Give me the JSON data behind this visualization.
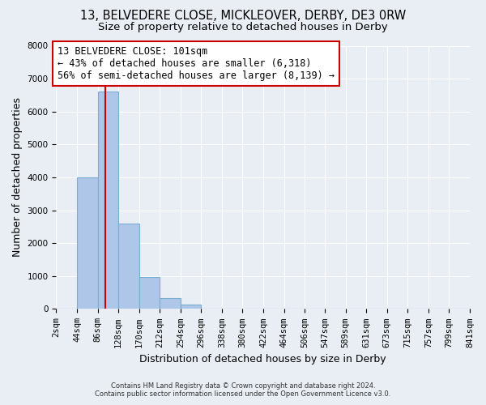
{
  "title": "13, BELVEDERE CLOSE, MICKLEOVER, DERBY, DE3 0RW",
  "subtitle": "Size of property relative to detached houses in Derby",
  "xlabel": "Distribution of detached houses by size in Derby",
  "ylabel": "Number of detached properties",
  "bin_edges": [
    2,
    44,
    86,
    128,
    170,
    212,
    254,
    296,
    338,
    380,
    422,
    464,
    506,
    547,
    589,
    631,
    673,
    715,
    757,
    799,
    841
  ],
  "bin_labels": [
    "2sqm",
    "44sqm",
    "86sqm",
    "128sqm",
    "170sqm",
    "212sqm",
    "254sqm",
    "296sqm",
    "338sqm",
    "380sqm",
    "422sqm",
    "464sqm",
    "506sqm",
    "547sqm",
    "589sqm",
    "631sqm",
    "673sqm",
    "715sqm",
    "757sqm",
    "799sqm",
    "841sqm"
  ],
  "counts": [
    0,
    4000,
    6600,
    2600,
    960,
    320,
    130,
    0,
    0,
    0,
    0,
    0,
    0,
    0,
    0,
    0,
    0,
    0,
    0,
    0
  ],
  "bar_color": "#aec6e8",
  "bar_edge_color": "#7aafd4",
  "vline_x": 101,
  "vline_color": "#cc0000",
  "annotation_line1": "13 BELVEDERE CLOSE: 101sqm",
  "annotation_line2": "← 43% of detached houses are smaller (6,318)",
  "annotation_line3": "56% of semi-detached houses are larger (8,139) →",
  "annotation_box_color": "#cc0000",
  "ylim": [
    0,
    8000
  ],
  "yticks": [
    0,
    1000,
    2000,
    3000,
    4000,
    5000,
    6000,
    7000,
    8000
  ],
  "background_color": "#e8eef4",
  "plot_background": "#e8eef4",
  "footer_line1": "Contains HM Land Registry data © Crown copyright and database right 2024.",
  "footer_line2": "Contains public sector information licensed under the Open Government Licence v3.0.",
  "grid_color": "#ffffff",
  "title_fontsize": 10.5,
  "subtitle_fontsize": 9.5,
  "axis_label_fontsize": 9,
  "tick_fontsize": 7.5,
  "annotation_fontsize": 8.5
}
